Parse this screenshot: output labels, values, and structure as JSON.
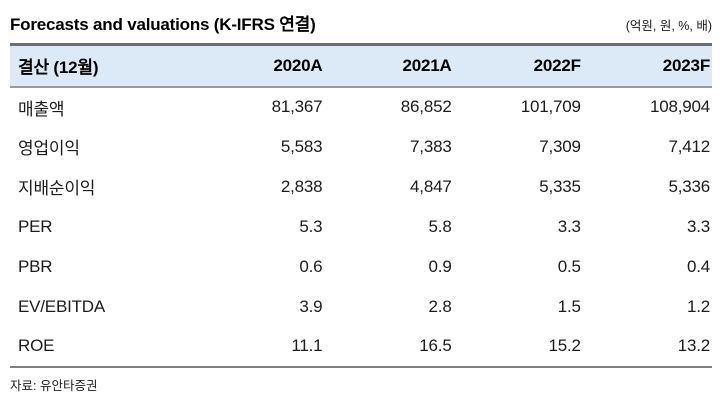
{
  "title": "Forecasts and valuations (K-IFRS 연결)",
  "units_note": "(억원, 원, %, 배)",
  "table": {
    "header": [
      "결산 (12월)",
      "2020A",
      "2021A",
      "2022F",
      "2023F"
    ],
    "rows": [
      {
        "label": "매출액",
        "values": [
          "81,367",
          "86,852",
          "101,709",
          "108,904"
        ]
      },
      {
        "label": "영업이익",
        "values": [
          "5,583",
          "7,383",
          "7,309",
          "7,412"
        ]
      },
      {
        "label": "지배순이익",
        "values": [
          "2,838",
          "4,847",
          "5,335",
          "5,336"
        ]
      },
      {
        "label": "PER",
        "values": [
          "5.3",
          "5.8",
          "3.3",
          "3.3"
        ]
      },
      {
        "label": "PBR",
        "values": [
          "0.6",
          "0.9",
          "0.5",
          "0.4"
        ]
      },
      {
        "label": "EV/EBITDA",
        "values": [
          "3.9",
          "2.8",
          "1.5",
          "1.2"
        ]
      },
      {
        "label": "ROE",
        "values": [
          "11.1",
          "16.5",
          "15.2",
          "13.2"
        ]
      }
    ]
  },
  "source": "자료: 유안타증권",
  "colors": {
    "header_bg": "#dce9f6",
    "rule_top": "#6e6e6e",
    "rule_header_bottom": "#9a9a9a",
    "rule_bottom": "#7f7f7f",
    "text": "#1c1c1c"
  }
}
